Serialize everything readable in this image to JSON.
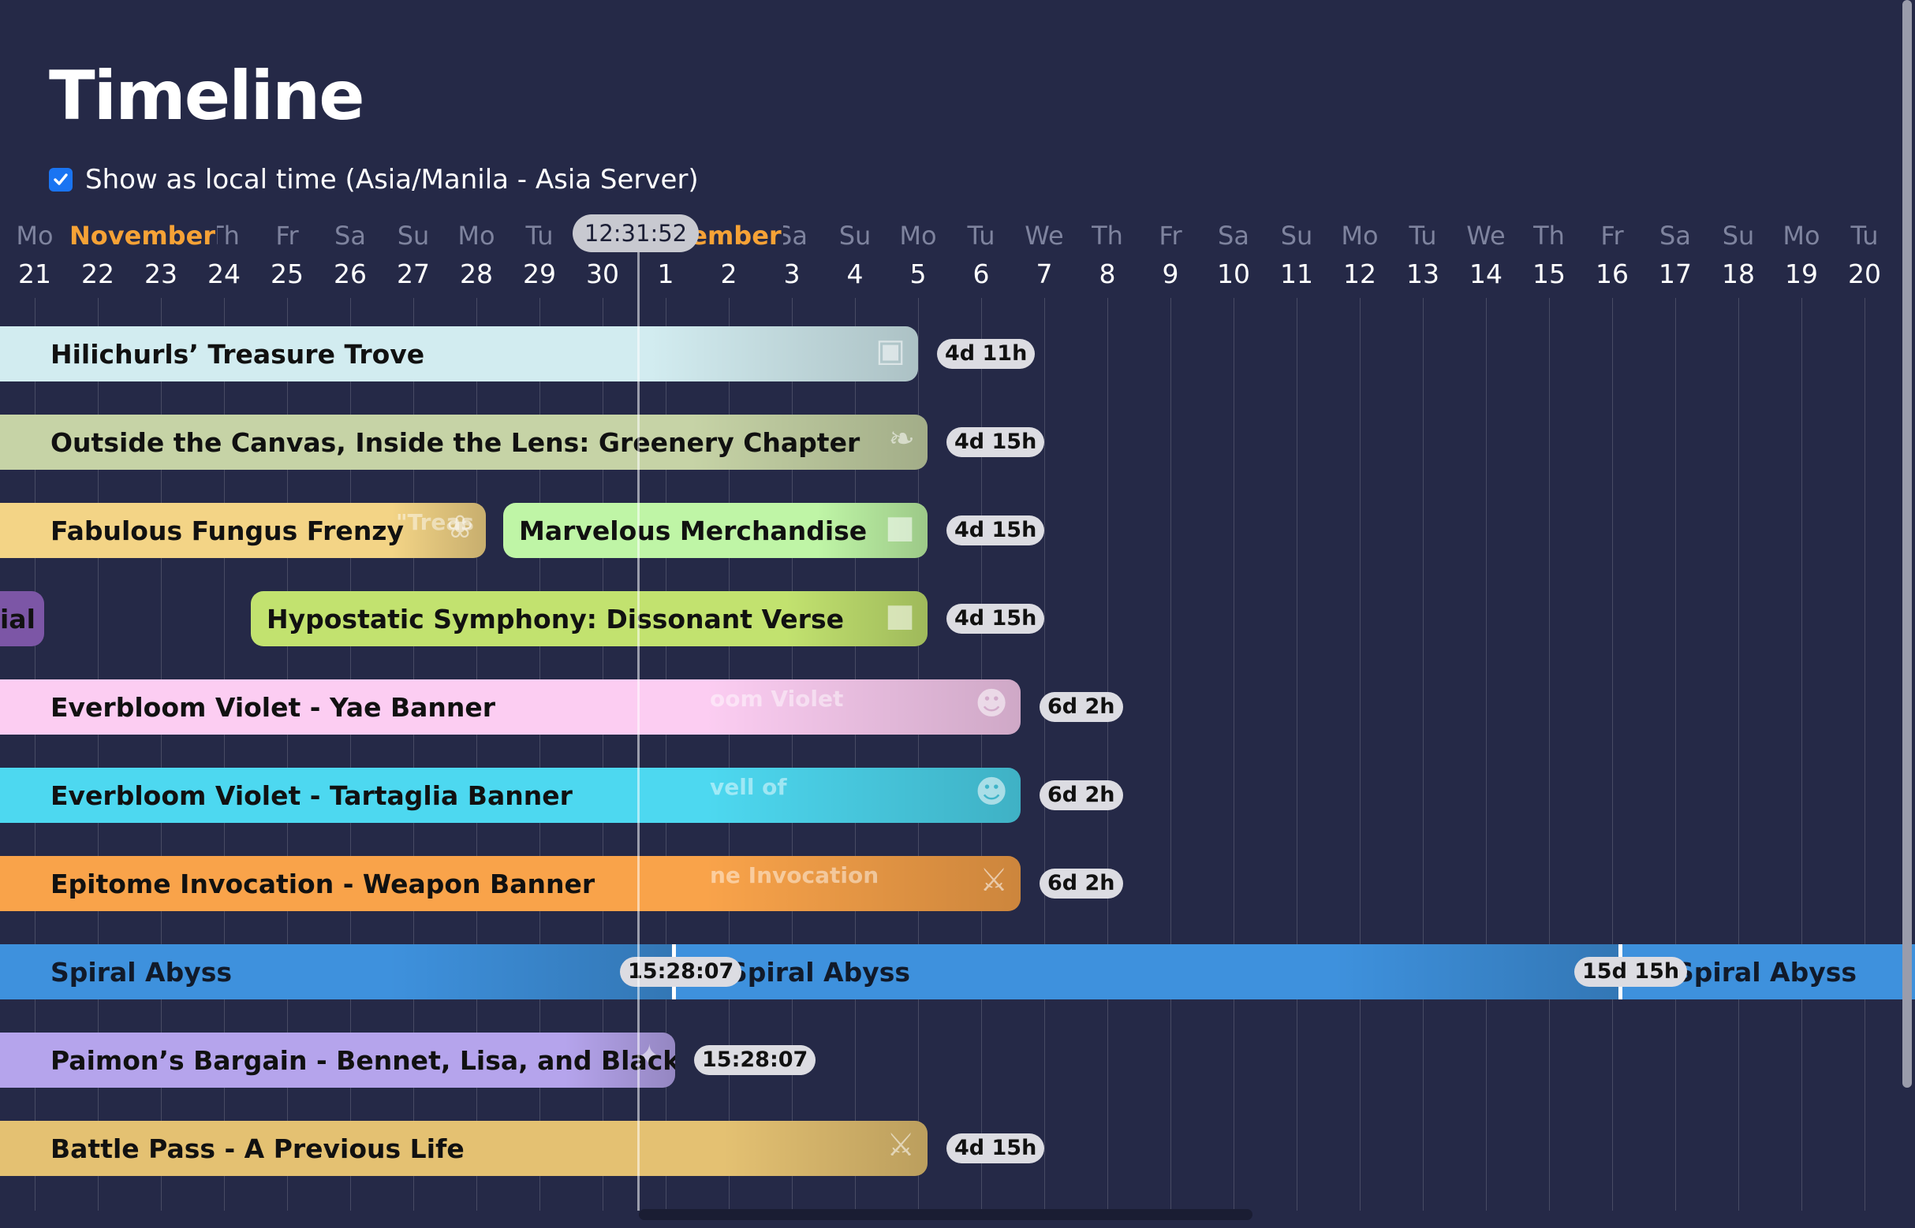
{
  "page": {
    "title": "Timeline",
    "local_time_label": "Show as local time (Asia/Manila - Asia Server)",
    "local_time_checked": true,
    "current_time": "12:31:52"
  },
  "months": [
    {
      "label": "November",
      "day_index": 1,
      "color": "#f6a236"
    },
    {
      "label": "December",
      "day_index": 10,
      "color": "#f6a236"
    }
  ],
  "days": [
    {
      "name": "Mo",
      "num": "21"
    },
    {
      "name": "Tu",
      "num": "22"
    },
    {
      "name": "We",
      "num": "23"
    },
    {
      "name": "Th",
      "num": "24"
    },
    {
      "name": "Fr",
      "num": "25"
    },
    {
      "name": "Sa",
      "num": "26"
    },
    {
      "name": "Su",
      "num": "27"
    },
    {
      "name": "Mo",
      "num": "28"
    },
    {
      "name": "Tu",
      "num": "29"
    },
    {
      "name": "We",
      "num": "30"
    },
    {
      "name": "Th",
      "num": "1"
    },
    {
      "name": "Fr",
      "num": "2"
    },
    {
      "name": "Sa",
      "num": "3"
    },
    {
      "name": "Su",
      "num": "4"
    },
    {
      "name": "Mo",
      "num": "5"
    },
    {
      "name": "Tu",
      "num": "6"
    },
    {
      "name": "We",
      "num": "7"
    },
    {
      "name": "Th",
      "num": "8"
    },
    {
      "name": "Fr",
      "num": "9"
    },
    {
      "name": "Sa",
      "num": "10"
    },
    {
      "name": "Su",
      "num": "11"
    },
    {
      "name": "Mo",
      "num": "12"
    },
    {
      "name": "Tu",
      "num": "13"
    },
    {
      "name": "We",
      "num": "14"
    },
    {
      "name": "Th",
      "num": "15"
    },
    {
      "name": "Fr",
      "num": "16"
    },
    {
      "name": "Sa",
      "num": "17"
    },
    {
      "name": "Su",
      "num": "18"
    },
    {
      "name": "Mo",
      "num": "19"
    },
    {
      "name": "Tu",
      "num": "20"
    }
  ],
  "events": [
    {
      "name": "Hilichurls’ Treasure Trove",
      "remaining": "4d 11h",
      "color": "#d2ecf0",
      "art_icon": "treasure-chest-icon"
    },
    {
      "name": "Outside the Canvas, Inside the Lens: Greenery Chapter",
      "remaining": "4d 15h",
      "color": "#c6d3a6",
      "art_icon": "leaf-icon"
    },
    {
      "name": "Fabulous Fungus Frenzy",
      "remaining": "",
      "color": "#f3d486",
      "art_text": "\"Treas",
      "art_icon": "mushroom-icon"
    },
    {
      "name": "Marvelous Merchandise",
      "remaining": "4d 15h",
      "color": "#bff5a6",
      "art_icon": "cube-icon"
    },
    {
      "name": "ial",
      "remaining": "",
      "color": "#7c56a6",
      "art_icon": ""
    },
    {
      "name": "Hypostatic Symphony: Dissonant Verse",
      "remaining": "4d 15h",
      "color": "#c2e26f",
      "art_icon": "cube-icon"
    },
    {
      "name": "Everbloom Violet - Yae Banner",
      "remaining": "6d 2h",
      "color": "#fccdf2",
      "art_text": "oom Violet",
      "art_icon": "character-portrait-icon"
    },
    {
      "name": "Everbloom Violet - Tartaglia Banner",
      "remaining": "6d 2h",
      "color": "#4dd8f0",
      "art_text": "vell of",
      "art_icon": "character-portrait-icon"
    },
    {
      "name": "Epitome Invocation - Weapon Banner",
      "remaining": "6d 2h",
      "color": "#f9a34a",
      "art_text": "ne Invocation",
      "art_icon": "weapon-icon"
    },
    {
      "name": "Spiral Abyss",
      "remaining": "15:28:07",
      "color": "#3e91dd",
      "art_icon": "abyss-portal-icon"
    },
    {
      "name": "Spiral Abyss",
      "remaining": "15d 15h",
      "color": "#3e91dd",
      "art_icon": "abyss-portal-icon"
    },
    {
      "name": "Spiral Abyss",
      "remaining": "",
      "color": "#3e91dd",
      "art_icon": ""
    },
    {
      "name": "Paimon’s Bargain - Bennet, Lisa, and Blackcliff",
      "remaining": "15:28:07",
      "color": "#b5a4ec",
      "art_icon": "star-icon"
    },
    {
      "name": "Battle Pass - A Previous Life",
      "remaining": "4d 15h",
      "color": "#e4c172",
      "art_icon": "weapon-icon"
    }
  ]
}
